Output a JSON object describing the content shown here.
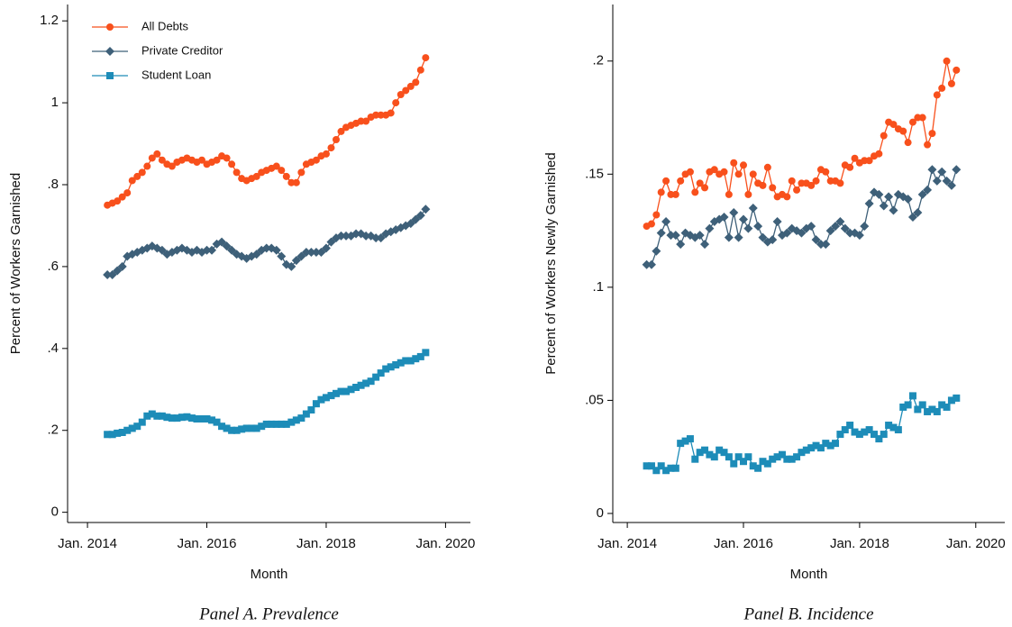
{
  "chart_data": [
    {
      "type": "line",
      "caption": "Panel A. Prevalence",
      "xlabel": "Month",
      "ylabel": "Percent of Workers Garnished",
      "legend": "upper left",
      "x": [
        "2014-05",
        "2014-06",
        "2014-07",
        "2014-08",
        "2014-09",
        "2014-10",
        "2014-11",
        "2014-12",
        "2015-01",
        "2015-02",
        "2015-03",
        "2015-04",
        "2015-05",
        "2015-06",
        "2015-07",
        "2015-08",
        "2015-09",
        "2015-10",
        "2015-11",
        "2015-12",
        "2016-01",
        "2016-02",
        "2016-03",
        "2016-04",
        "2016-05",
        "2016-06",
        "2016-07",
        "2016-08",
        "2016-09",
        "2016-10",
        "2016-11",
        "2016-12",
        "2017-01",
        "2017-02",
        "2017-03",
        "2017-04",
        "2017-05",
        "2017-06",
        "2017-07",
        "2017-08",
        "2017-09",
        "2017-10",
        "2017-11",
        "2017-12",
        "2018-01",
        "2018-02",
        "2018-03",
        "2018-04",
        "2018-05",
        "2018-06",
        "2018-07",
        "2018-08",
        "2018-09",
        "2018-10",
        "2018-11",
        "2018-12",
        "2019-01",
        "2019-02",
        "2019-03",
        "2019-04",
        "2019-05",
        "2019-06",
        "2019-07",
        "2019-08",
        "2019-09"
      ],
      "xlim": [
        "2013-09",
        "2020-06"
      ],
      "xticks": [
        {
          "value": "2014-01",
          "label": "Jan. 2014"
        },
        {
          "value": "2016-01",
          "label": "Jan. 2016"
        },
        {
          "value": "2018-01",
          "label": "Jan. 2018"
        },
        {
          "value": "2020-01",
          "label": "Jan. 2020"
        }
      ],
      "ylim": [
        -0.025,
        1.24
      ],
      "yticks": [
        0,
        {
          "value": 0.2,
          "label": ".2"
        },
        {
          "value": 0.4,
          "label": ".4"
        },
        {
          "value": 0.6,
          "label": ".6"
        },
        {
          "value": 0.8,
          "label": ".8"
        },
        1,
        1.2
      ],
      "series": [
        {
          "name": "All Debts",
          "color": "#f8501c",
          "marker": "circle",
          "values": [
            0.75,
            0.755,
            0.76,
            0.77,
            0.78,
            0.81,
            0.82,
            0.83,
            0.845,
            0.865,
            0.875,
            0.86,
            0.85,
            0.845,
            0.855,
            0.86,
            0.865,
            0.86,
            0.855,
            0.86,
            0.85,
            0.855,
            0.86,
            0.87,
            0.865,
            0.85,
            0.83,
            0.815,
            0.81,
            0.815,
            0.82,
            0.83,
            0.835,
            0.84,
            0.845,
            0.835,
            0.82,
            0.805,
            0.805,
            0.83,
            0.85,
            0.855,
            0.86,
            0.87,
            0.875,
            0.89,
            0.91,
            0.93,
            0.94,
            0.945,
            0.95,
            0.955,
            0.955,
            0.965,
            0.97,
            0.97,
            0.97,
            0.975,
            1.0,
            1.02,
            1.03,
            1.04,
            1.05,
            1.08,
            1.11
          ]
        },
        {
          "name": "Private Creditor",
          "color": "#3e6079",
          "marker": "diamond",
          "values": [
            0.58,
            0.58,
            0.59,
            0.6,
            0.625,
            0.63,
            0.635,
            0.64,
            0.645,
            0.65,
            0.645,
            0.64,
            0.63,
            0.635,
            0.64,
            0.645,
            0.64,
            0.635,
            0.64,
            0.635,
            0.64,
            0.64,
            0.655,
            0.66,
            0.65,
            0.64,
            0.63,
            0.625,
            0.62,
            0.625,
            0.63,
            0.64,
            0.645,
            0.645,
            0.64,
            0.625,
            0.605,
            0.6,
            0.615,
            0.625,
            0.635,
            0.635,
            0.635,
            0.635,
            0.645,
            0.66,
            0.67,
            0.675,
            0.675,
            0.675,
            0.68,
            0.68,
            0.675,
            0.675,
            0.67,
            0.67,
            0.68,
            0.685,
            0.69,
            0.695,
            0.7,
            0.705,
            0.715,
            0.725,
            0.74
          ]
        },
        {
          "name": "Student Loan",
          "color": "#1d8cb8",
          "marker": "square",
          "values": [
            0.19,
            0.19,
            0.193,
            0.195,
            0.2,
            0.205,
            0.21,
            0.22,
            0.235,
            0.24,
            0.235,
            0.235,
            0.232,
            0.23,
            0.23,
            0.232,
            0.233,
            0.23,
            0.228,
            0.228,
            0.228,
            0.225,
            0.22,
            0.21,
            0.205,
            0.2,
            0.2,
            0.203,
            0.205,
            0.205,
            0.205,
            0.21,
            0.215,
            0.215,
            0.215,
            0.215,
            0.215,
            0.22,
            0.225,
            0.23,
            0.24,
            0.25,
            0.265,
            0.275,
            0.28,
            0.285,
            0.29,
            0.295,
            0.295,
            0.3,
            0.305,
            0.31,
            0.315,
            0.32,
            0.33,
            0.34,
            0.35,
            0.355,
            0.36,
            0.365,
            0.37,
            0.37,
            0.375,
            0.38,
            0.39
          ]
        }
      ]
    },
    {
      "type": "line",
      "caption": "Panel B. Incidence",
      "xlabel": "Month",
      "ylabel": "Percent of Workers Newly Garnished",
      "x": [
        "2014-05",
        "2014-06",
        "2014-07",
        "2014-08",
        "2014-09",
        "2014-10",
        "2014-11",
        "2014-12",
        "2015-01",
        "2015-02",
        "2015-03",
        "2015-04",
        "2015-05",
        "2015-06",
        "2015-07",
        "2015-08",
        "2015-09",
        "2015-10",
        "2015-11",
        "2015-12",
        "2016-01",
        "2016-02",
        "2016-03",
        "2016-04",
        "2016-05",
        "2016-06",
        "2016-07",
        "2016-08",
        "2016-09",
        "2016-10",
        "2016-11",
        "2016-12",
        "2017-01",
        "2017-02",
        "2017-03",
        "2017-04",
        "2017-05",
        "2017-06",
        "2017-07",
        "2017-08",
        "2017-09",
        "2017-10",
        "2017-11",
        "2017-12",
        "2018-01",
        "2018-02",
        "2018-03",
        "2018-04",
        "2018-05",
        "2018-06",
        "2018-07",
        "2018-08",
        "2018-09",
        "2018-10",
        "2018-11",
        "2018-12",
        "2019-01",
        "2019-02",
        "2019-03",
        "2019-04",
        "2019-05",
        "2019-06",
        "2019-07",
        "2019-08",
        "2019-09"
      ],
      "xlim": [
        "2013-10",
        "2020-07"
      ],
      "xticks": [
        {
          "value": "2014-01",
          "label": "Jan. 2014"
        },
        {
          "value": "2016-01",
          "label": "Jan. 2016"
        },
        {
          "value": "2018-01",
          "label": "Jan. 2018"
        },
        {
          "value": "2020-01",
          "label": "Jan. 2020"
        }
      ],
      "ylim": [
        -0.004,
        0.225
      ],
      "yticks": [
        0,
        {
          "value": 0.05,
          "label": ".05"
        },
        {
          "value": 0.1,
          "label": ".1"
        },
        {
          "value": 0.15,
          "label": ".15"
        },
        {
          "value": 0.2,
          "label": ".2"
        }
      ],
      "series": [
        {
          "color": "#f8501c",
          "marker": "circle",
          "values": [
            0.127,
            0.128,
            0.132,
            0.142,
            0.147,
            0.141,
            0.141,
            0.147,
            0.15,
            0.151,
            0.142,
            0.146,
            0.144,
            0.151,
            0.152,
            0.15,
            0.151,
            0.141,
            0.155,
            0.15,
            0.154,
            0.141,
            0.15,
            0.146,
            0.145,
            0.153,
            0.144,
            0.14,
            0.141,
            0.14,
            0.147,
            0.143,
            0.146,
            0.146,
            0.145,
            0.147,
            0.152,
            0.151,
            0.147,
            0.147,
            0.146,
            0.154,
            0.153,
            0.157,
            0.155,
            0.156,
            0.156,
            0.158,
            0.159,
            0.167,
            0.173,
            0.172,
            0.17,
            0.169,
            0.164,
            0.173,
            0.175,
            0.175,
            0.163,
            0.168,
            0.185,
            0.188,
            0.2,
            0.19,
            0.196
          ]
        },
        {
          "color": "#3e6079",
          "marker": "diamond",
          "values": [
            0.11,
            0.11,
            0.116,
            0.124,
            0.129,
            0.123,
            0.123,
            0.119,
            0.124,
            0.123,
            0.122,
            0.123,
            0.119,
            0.126,
            0.129,
            0.13,
            0.131,
            0.122,
            0.133,
            0.122,
            0.13,
            0.126,
            0.135,
            0.127,
            0.122,
            0.12,
            0.121,
            0.129,
            0.123,
            0.124,
            0.126,
            0.125,
            0.124,
            0.126,
            0.127,
            0.121,
            0.119,
            0.119,
            0.125,
            0.127,
            0.129,
            0.126,
            0.124,
            0.124,
            0.123,
            0.127,
            0.137,
            0.142,
            0.141,
            0.136,
            0.14,
            0.134,
            0.141,
            0.14,
            0.139,
            0.131,
            0.133,
            0.141,
            0.143,
            0.152,
            0.147,
            0.151,
            0.147,
            0.145,
            0.152
          ]
        },
        {
          "color": "#1d8cb8",
          "marker": "square",
          "values": [
            0.021,
            0.021,
            0.019,
            0.021,
            0.019,
            0.02,
            0.02,
            0.031,
            0.032,
            0.033,
            0.024,
            0.027,
            0.028,
            0.026,
            0.025,
            0.028,
            0.027,
            0.025,
            0.022,
            0.025,
            0.023,
            0.025,
            0.021,
            0.02,
            0.023,
            0.022,
            0.024,
            0.025,
            0.026,
            0.024,
            0.024,
            0.025,
            0.027,
            0.028,
            0.029,
            0.03,
            0.029,
            0.031,
            0.03,
            0.031,
            0.035,
            0.037,
            0.039,
            0.036,
            0.035,
            0.036,
            0.037,
            0.035,
            0.033,
            0.035,
            0.039,
            0.038,
            0.037,
            0.047,
            0.048,
            0.052,
            0.046,
            0.048,
            0.045,
            0.046,
            0.045,
            0.048,
            0.047,
            0.05,
            0.051
          ]
        }
      ]
    }
  ]
}
